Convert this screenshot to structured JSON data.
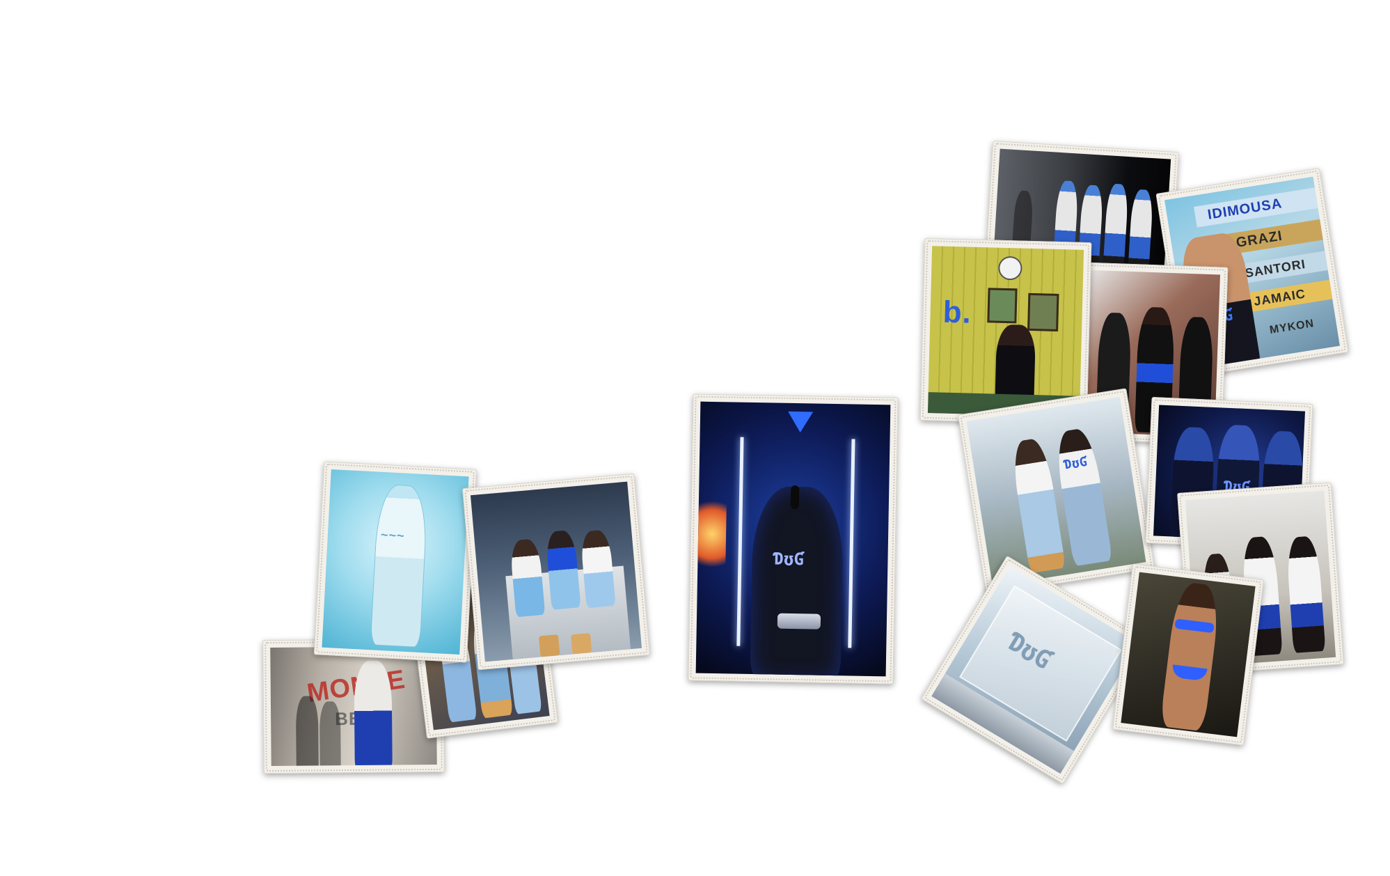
{
  "collage": {
    "photos": [
      {
        "id": "p01",
        "subject": "graffiti-wall"
      },
      {
        "id": "p02",
        "subject": "light-blue-tracksuit"
      },
      {
        "id": "p03",
        "subject": "market-crowd"
      },
      {
        "id": "p04",
        "subject": "group-sitting-container"
      },
      {
        "id": "p05",
        "subject": "performer-microphone"
      },
      {
        "id": "p06",
        "subject": "night-group-street"
      },
      {
        "id": "p07",
        "subject": "signpost-woman"
      },
      {
        "id": "p08",
        "subject": "clock-room"
      },
      {
        "id": "p09",
        "subject": "stairs-trio"
      },
      {
        "id": "p10",
        "subject": "street-couple"
      },
      {
        "id": "p11",
        "subject": "masked-group"
      },
      {
        "id": "p12",
        "subject": "frosted-logo-box"
      },
      {
        "id": "p13",
        "subject": "bikini-portrait"
      },
      {
        "id": "p14",
        "subject": "trio-doorway"
      }
    ],
    "signpost_words": [
      "IDIMOUSA",
      "GRAZI",
      "SANTORI",
      "JAMAIC",
      "MYKON"
    ],
    "graffiti_words": [
      "MONTE",
      "BB"
    ],
    "colors": {
      "accent": "#1f4fd8",
      "paper": "#f3f0ea",
      "ice": "#8fd3e8"
    }
  }
}
